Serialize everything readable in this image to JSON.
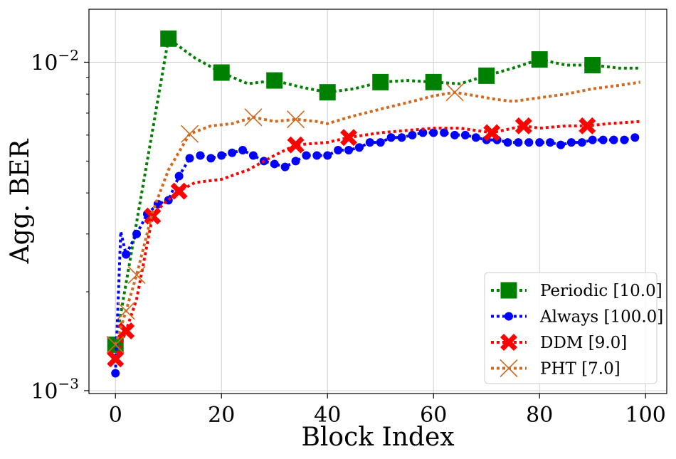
{
  "chart_data": {
    "type": "line",
    "title": "",
    "xlabel": "Block Index",
    "ylabel": "Agg. BER",
    "xlim": [
      -5,
      104
    ],
    "ylim": [
      0.00098,
      0.0145
    ],
    "yscale": "log",
    "grid": true,
    "legend_placement": "lower-right",
    "x_ticks": [
      0,
      20,
      40,
      60,
      80,
      100
    ],
    "x_tick_labels": [
      "0",
      "20",
      "40",
      "60",
      "80",
      "100"
    ],
    "y_ticks": [
      0.001,
      0.01
    ],
    "y_tick_base": "10",
    "y_tick_exponents": [
      "−3",
      "−2"
    ],
    "y_minor_ticks": [
      0.002,
      0.003,
      0.004,
      0.005,
      0.006,
      0.007,
      0.008,
      0.009
    ],
    "series": [
      {
        "name": "Periodic [10.0]",
        "color": "#008000",
        "marker": "square",
        "x": [
          0,
          10,
          15,
          20,
          25,
          30,
          35,
          40,
          45,
          50,
          55,
          60,
          65,
          70,
          75,
          80,
          85,
          90,
          95,
          99
        ],
        "y": [
          0.00138,
          0.0118,
          0.0103,
          0.0093,
          0.0086,
          0.0088,
          0.0084,
          0.0081,
          0.0083,
          0.0087,
          0.0088,
          0.0087,
          0.0086,
          0.0091,
          0.0096,
          0.0102,
          0.0098,
          0.0098,
          0.0096,
          0.0096
        ],
        "marker_x": [
          0,
          10,
          20,
          30,
          40,
          50,
          60,
          70,
          80,
          90
        ]
      },
      {
        "name": "Always [100.0]",
        "color": "#0000ff",
        "marker": "circle",
        "x": [
          0,
          1,
          2,
          4,
          6,
          8,
          10,
          12,
          14,
          16,
          18,
          20,
          22,
          24,
          26,
          28,
          30,
          32,
          34,
          36,
          38,
          40,
          42,
          44,
          46,
          48,
          50,
          52,
          54,
          56,
          58,
          60,
          62,
          64,
          66,
          68,
          70,
          72,
          74,
          76,
          78,
          80,
          82,
          84,
          86,
          88,
          90,
          92,
          94,
          96,
          98
        ],
        "y": [
          0.00113,
          0.00305,
          0.0026,
          0.003,
          0.00345,
          0.0037,
          0.0038,
          0.0045,
          0.0051,
          0.0052,
          0.0051,
          0.0052,
          0.0053,
          0.0054,
          0.0052,
          0.005,
          0.0049,
          0.0048,
          0.005,
          0.0052,
          0.0052,
          0.0052,
          0.0054,
          0.0054,
          0.0055,
          0.0057,
          0.0057,
          0.0059,
          0.0059,
          0.006,
          0.0061,
          0.0061,
          0.0061,
          0.006,
          0.006,
          0.0059,
          0.0058,
          0.0058,
          0.0057,
          0.0057,
          0.0057,
          0.0057,
          0.0057,
          0.0056,
          0.0057,
          0.0057,
          0.0058,
          0.0058,
          0.0058,
          0.0058,
          0.0059
        ],
        "marker_x": [
          0,
          2,
          4,
          6,
          8,
          10,
          12,
          14,
          16,
          18,
          20,
          22,
          24,
          26,
          28,
          30,
          32,
          34,
          36,
          38,
          40,
          42,
          44,
          46,
          48,
          50,
          52,
          54,
          56,
          58,
          60,
          62,
          64,
          66,
          68,
          70,
          72,
          74,
          76,
          78,
          80,
          82,
          84,
          86,
          88,
          90,
          92,
          94,
          96,
          98
        ]
      },
      {
        "name": "DDM [9.0]",
        "color": "#ff0000",
        "marker": "x-filled",
        "x": [
          0,
          2,
          4,
          7,
          9,
          12,
          15,
          20,
          25,
          30,
          34,
          40,
          44,
          50,
          55,
          60,
          65,
          71,
          75,
          77,
          80,
          85,
          89,
          93,
          99
        ],
        "y": [
          0.00125,
          0.00152,
          0.0019,
          0.0034,
          0.0037,
          0.00405,
          0.0043,
          0.0044,
          0.0047,
          0.0052,
          0.0056,
          0.0057,
          0.0059,
          0.0061,
          0.0062,
          0.0063,
          0.0063,
          0.0061,
          0.0063,
          0.0064,
          0.0063,
          0.0064,
          0.0064,
          0.0065,
          0.0066
        ],
        "marker_x": [
          0,
          2,
          7,
          12,
          34,
          44,
          71,
          77,
          89
        ]
      },
      {
        "name": "PHT [7.0]",
        "color": "#d2691e",
        "marker": "x",
        "x": [
          0,
          2,
          4,
          7,
          10,
          14,
          18,
          22,
          26,
          30,
          34,
          38,
          40,
          44,
          50,
          56,
          60,
          64,
          68,
          72,
          75,
          80,
          85,
          90,
          95,
          99
        ],
        "y": [
          0.00138,
          0.00175,
          0.00225,
          0.0035,
          0.0047,
          0.00605,
          0.0064,
          0.0065,
          0.0068,
          0.0066,
          0.0067,
          0.0066,
          0.0065,
          0.0068,
          0.0072,
          0.0076,
          0.0079,
          0.0081,
          0.0079,
          0.0077,
          0.0076,
          0.0078,
          0.008,
          0.0083,
          0.0085,
          0.0087
        ],
        "marker_x": [
          0,
          2,
          4,
          14,
          26,
          34,
          64
        ]
      }
    ]
  }
}
